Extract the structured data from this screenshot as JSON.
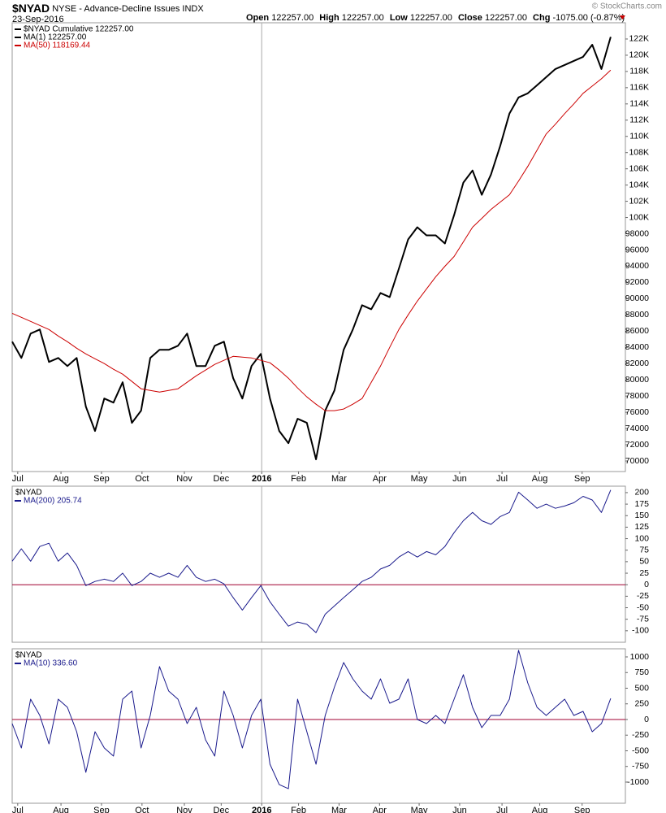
{
  "header": {
    "symbol": "$NYAD",
    "description": "NYSE - Advance-Decline Issues INDX",
    "date": "23-Sep-2016",
    "quote": [
      {
        "label": "Open",
        "value": "122257.00"
      },
      {
        "label": "High",
        "value": "122257.00"
      },
      {
        "label": "Low",
        "value": "122257.00"
      },
      {
        "label": "Close",
        "value": "122257.00"
      },
      {
        "label": "Chg",
        "value": "-1075.00 (-0.87%)"
      }
    ],
    "copyright": "© StockCharts.com"
  },
  "chart_data": [
    {
      "type": "line",
      "label": "$NYAD Cumulative 122257.00",
      "xlim": [
        0,
        66.6
      ],
      "xticks": [
        {
          "value": 0.6,
          "label": "Jul"
        },
        {
          "value": 5.3,
          "label": "Aug"
        },
        {
          "value": 9.7,
          "label": "Sep"
        },
        {
          "value": 14.1,
          "label": "Oct"
        },
        {
          "value": 18.7,
          "label": "Nov"
        },
        {
          "value": 22.7,
          "label": "Dec"
        },
        {
          "value": 27.1,
          "label": "2016"
        },
        {
          "value": 31.1,
          "label": "Feb"
        },
        {
          "value": 35.5,
          "label": "Mar"
        },
        {
          "value": 39.9,
          "label": "Apr"
        },
        {
          "value": 44.2,
          "label": "May"
        },
        {
          "value": 48.6,
          "label": "Jun"
        },
        {
          "value": 53.2,
          "label": "Jul"
        },
        {
          "value": 57.3,
          "label": "Aug"
        },
        {
          "value": 61.9,
          "label": "Sep"
        }
      ],
      "ylim": [
        68700,
        124000
      ],
      "yticks": [
        70000,
        72000,
        74000,
        76000,
        78000,
        80000,
        82000,
        84000,
        86000,
        88000,
        90000,
        92000,
        94000,
        96000,
        98000,
        {
          "value": 100000,
          "label": "100K"
        },
        {
          "value": 102000,
          "label": "102K"
        },
        {
          "value": 104000,
          "label": "104K"
        },
        {
          "value": 106000,
          "label": "106K"
        },
        {
          "value": 108000,
          "label": "108K"
        },
        {
          "value": 110000,
          "label": "110K"
        },
        {
          "value": 112000,
          "label": "112K"
        },
        {
          "value": 114000,
          "label": "114K"
        },
        {
          "value": 116000,
          "label": "116K"
        },
        {
          "value": 118000,
          "label": "118K"
        },
        {
          "value": 120000,
          "label": "120K"
        },
        {
          "value": 122000,
          "label": "122K"
        }
      ],
      "series": [
        {
          "name": "MA(1) 122257.00",
          "color": "#000000",
          "width": 2,
          "values": [
            84700,
            82700,
            85700,
            86200,
            82200,
            82700,
            81700,
            82700,
            76700,
            73700,
            77700,
            77200,
            79700,
            74700,
            76200,
            82700,
            83700,
            83700,
            84200,
            85700,
            81700,
            81700,
            84200,
            84700,
            80200,
            77700,
            81700,
            83200,
            77700,
            73700,
            72200,
            75200,
            74700,
            70200,
            76200,
            78700,
            83700,
            86200,
            89200,
            88700,
            90700,
            90200,
            93700,
            97300,
            98800,
            97800,
            97800,
            96800,
            100300,
            104300,
            105800,
            102800,
            105300,
            108800,
            112800,
            114800,
            115300,
            116300,
            117300,
            118300,
            118800,
            119300,
            119800,
            121300,
            118300,
            122257
          ]
        },
        {
          "name": "MA(50) 118169.44",
          "color": "#cc0000",
          "width": 1,
          "values": [
            88200,
            87700,
            87200,
            86700,
            86200,
            85400,
            84700,
            83900,
            83200,
            82600,
            82000,
            81300,
            80700,
            79800,
            78900,
            78700,
            78500,
            78700,
            78900,
            79700,
            80500,
            81200,
            81900,
            82400,
            82900,
            82800,
            82700,
            82400,
            82100,
            81200,
            80200,
            79000,
            77900,
            77000,
            76200,
            76200,
            76400,
            77000,
            77700,
            79700,
            81700,
            84000,
            86200,
            88000,
            89700,
            91200,
            92700,
            94000,
            95200,
            97000,
            98800,
            99900,
            101000,
            101900,
            102800,
            104500,
            106300,
            108300,
            110300,
            111500,
            112800,
            114000,
            115300,
            116200,
            117100,
            118169.44
          ]
        }
      ]
    },
    {
      "type": "line",
      "label": "$NYAD",
      "ylim": [
        -125,
        214
      ],
      "yticks": [
        -100,
        -75,
        -50,
        -25,
        0,
        25,
        50,
        75,
        100,
        125,
        150,
        175,
        200
      ],
      "hline": 0,
      "hline_color": "#a00030",
      "series": [
        {
          "name": "MA(200) 205.74",
          "color": "#1a1a8c",
          "width": 1,
          "values": [
            51,
            78,
            51,
            83,
            90,
            51,
            69,
            42,
            -2,
            7,
            12,
            7,
            25,
            -2,
            7,
            25,
            16,
            25,
            16,
            42,
            16,
            7,
            12,
            2,
            -28,
            -55,
            -28,
            -2,
            -37,
            -64,
            -90,
            -81,
            -86,
            -104,
            -64,
            -46,
            -28,
            -11,
            7,
            16,
            34,
            42,
            60,
            72,
            60,
            72,
            65,
            83,
            113,
            139,
            157,
            139,
            131,
            148,
            157,
            201,
            184,
            166,
            175,
            166,
            171,
            178,
            192,
            184,
            157,
            205.74
          ]
        }
      ]
    },
    {
      "type": "line",
      "label": "$NYAD",
      "xlim": [
        0,
        66.6
      ],
      "xticks": [
        {
          "value": 0.6,
          "label": "Jul"
        },
        {
          "value": 5.3,
          "label": "Aug"
        },
        {
          "value": 9.7,
          "label": "Sep"
        },
        {
          "value": 14.1,
          "label": "Oct"
        },
        {
          "value": 18.7,
          "label": "Nov"
        },
        {
          "value": 22.7,
          "label": "Dec"
        },
        {
          "value": 27.1,
          "label": "2016"
        },
        {
          "value": 31.1,
          "label": "Feb"
        },
        {
          "value": 35.5,
          "label": "Mar"
        },
        {
          "value": 39.9,
          "label": "Apr"
        },
        {
          "value": 44.2,
          "label": "May"
        },
        {
          "value": 48.6,
          "label": "Jun"
        },
        {
          "value": 53.2,
          "label": "Jul"
        },
        {
          "value": 57.3,
          "label": "Aug"
        },
        {
          "value": 61.9,
          "label": "Sep"
        }
      ],
      "ylim": [
        -1338,
        1130
      ],
      "yticks": [
        -1000,
        -750,
        -500,
        -250,
        0,
        250,
        500,
        750,
        1000
      ],
      "hline": 0,
      "hline_color": "#a00030",
      "series": [
        {
          "name": "MA(10) 336.60",
          "color": "#1a1a8c",
          "width": 1,
          "values": [
            -65,
            -455,
            325,
            65,
            -390,
            325,
            195,
            -195,
            -845,
            -195,
            -455,
            -585,
            325,
            455,
            -455,
            65,
            845,
            455,
            325,
            -65,
            195,
            -325,
            -585,
            455,
            65,
            -455,
            65,
            325,
            -715,
            -1040,
            -1105,
            325,
            -195,
            -715,
            65,
            520,
            910,
            650,
            455,
            325,
            650,
            260,
            325,
            650,
            0,
            -65,
            65,
            -65,
            325,
            715,
            195,
            -130,
            65,
            65,
            325,
            1105,
            585,
            195,
            65,
            195,
            325,
            65,
            130,
            -195,
            -65,
            336.6
          ]
        }
      ]
    }
  ]
}
